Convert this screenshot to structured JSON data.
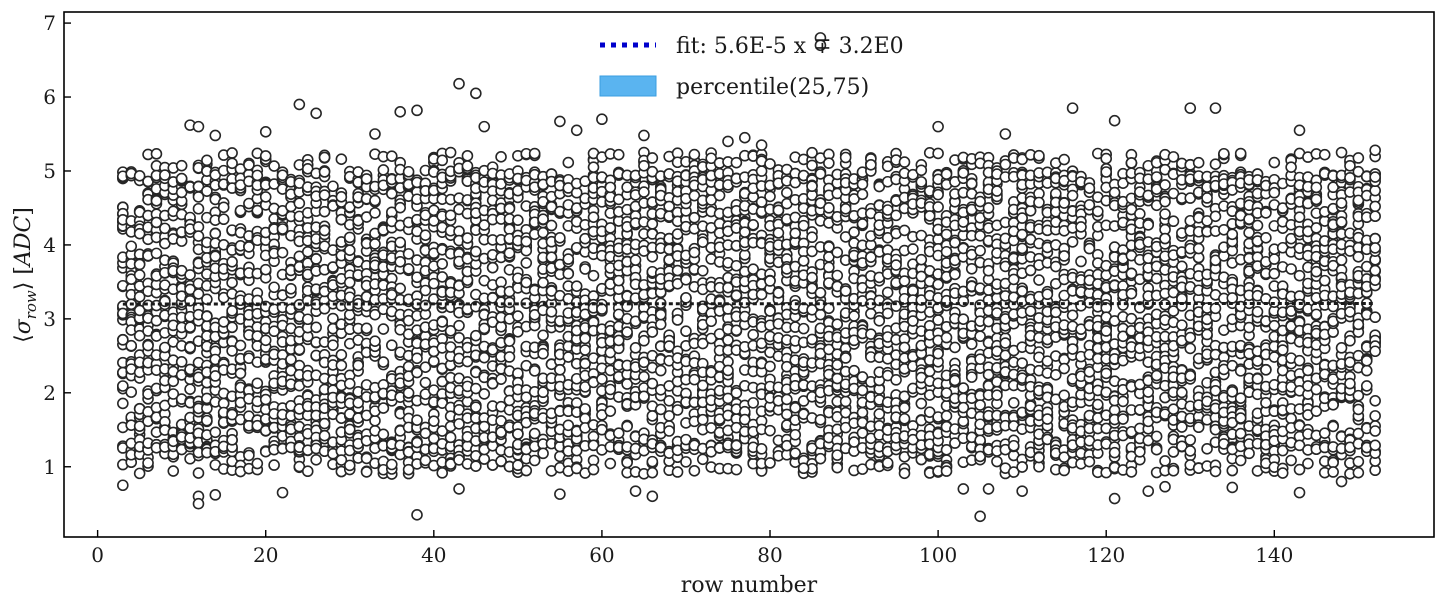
{
  "chart_data": {
    "type": "scatter",
    "xlabel": "row number",
    "ylabel_parts": [
      "⟨",
      "σ",
      "row",
      "⟩ [",
      "ADC",
      "]"
    ],
    "xlim": [
      -4,
      159
    ],
    "ylim": [
      0.05,
      7.15
    ],
    "xticks": [
      0,
      20,
      40,
      60,
      80,
      100,
      120,
      140
    ],
    "yticks": [
      1,
      2,
      3,
      4,
      5,
      6,
      7
    ],
    "x_range": [
      3,
      152
    ],
    "points_per_row": 40,
    "scatter_distribution": {
      "center": 3.2,
      "main_low": 1.2,
      "main_high": 5.0
    },
    "outliers": [
      [
        3,
        0.75
      ],
      [
        12,
        0.6
      ],
      [
        12,
        0.5
      ],
      [
        14,
        0.62
      ],
      [
        22,
        0.65
      ],
      [
        38,
        0.35
      ],
      [
        43,
        0.7
      ],
      [
        55,
        0.63
      ],
      [
        64,
        0.67
      ],
      [
        66,
        0.6
      ],
      [
        84,
        0.98
      ],
      [
        103,
        0.7
      ],
      [
        105,
        0.33
      ],
      [
        106,
        0.7
      ],
      [
        110,
        0.67
      ],
      [
        121,
        0.57
      ],
      [
        125,
        0.67
      ],
      [
        127,
        0.73
      ],
      [
        135,
        0.72
      ],
      [
        143,
        0.65
      ],
      [
        148,
        0.8
      ],
      [
        11,
        5.62
      ],
      [
        12,
        5.6
      ],
      [
        14,
        5.48
      ],
      [
        20,
        5.53
      ],
      [
        24,
        5.9
      ],
      [
        26,
        5.78
      ],
      [
        33,
        5.5
      ],
      [
        36,
        5.8
      ],
      [
        38,
        5.82
      ],
      [
        43,
        6.18
      ],
      [
        45,
        6.05
      ],
      [
        46,
        5.6
      ],
      [
        55,
        5.67
      ],
      [
        57,
        5.55
      ],
      [
        60,
        5.7
      ],
      [
        65,
        5.48
      ],
      [
        75,
        5.4
      ],
      [
        77,
        5.45
      ],
      [
        79,
        5.35
      ],
      [
        86,
        6.8
      ],
      [
        86,
        6.7
      ],
      [
        100,
        5.6
      ],
      [
        108,
        5.5
      ],
      [
        116,
        5.85
      ],
      [
        121,
        5.68
      ],
      [
        130,
        5.85
      ],
      [
        133,
        5.85
      ],
      [
        143,
        5.55
      ],
      [
        152,
        5.28
      ]
    ],
    "series": [
      {
        "name": "fit: 5.6E-5 x ∓ 3.2E0",
        "kind": "fit-line",
        "slope": 5.6e-05,
        "intercept": 3.2,
        "color": "#0000cc"
      },
      {
        "name": "percentile(25,75)",
        "kind": "band",
        "color": "#5ab4f0"
      }
    ]
  },
  "legend": {
    "fit_label": "fit: 5.6E-5 x ∓ 3.2E0",
    "band_label": "percentile(25,75)",
    "placement": "top-center"
  },
  "colors": {
    "marker_edge": "#262626",
    "marker_face": "#ffffff",
    "fit_line": "#0000cc",
    "band": "#5ab4f0"
  }
}
